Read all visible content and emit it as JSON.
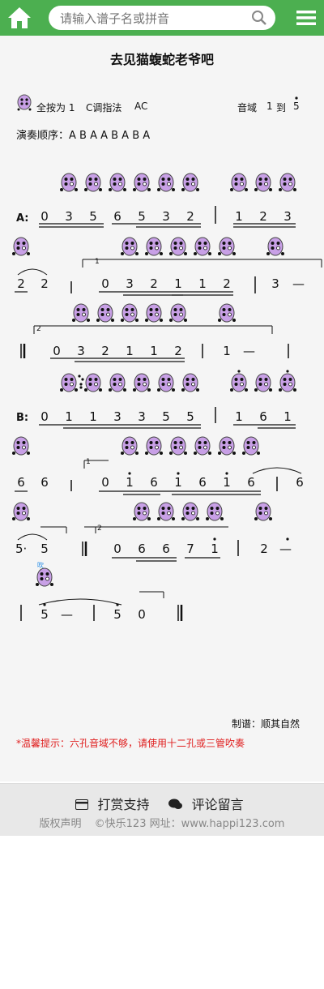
{
  "header": {
    "search_placeholder": "请输入谱子名或拼音",
    "home_icon": "home-icon",
    "search_icon": "search-icon",
    "menu_icon": "menu-icon",
    "accent": "#4caf50"
  },
  "score": {
    "title": "去见猫蝮蛇老爷吧",
    "fingering_label": "全按为 1",
    "key_label": "C调指法",
    "ac_label": "AC",
    "range_label": "音域",
    "range_from": "1",
    "range_to_word": "到",
    "range_to": "5",
    "order_label": "演奏顺序：A B A A B A B A",
    "section_a": "A:",
    "section_b": "B:",
    "volta_1": "1",
    "volta_2": "2",
    "grace_label": "吹",
    "credit": "制谱：顺其自然",
    "hint": "*温馨提示：六孔音域不够，请使用十二孔或三管吹奏",
    "ocarina_color": "#c8a0e6"
  },
  "notes": {
    "r1": [
      "0",
      "3",
      "5",
      "6",
      "5",
      "3",
      "2",
      "1",
      "2",
      "3"
    ],
    "r2": [
      "2",
      "2",
      "0",
      "3",
      "2",
      "1",
      "1",
      "2",
      "3",
      "—"
    ],
    "r3": [
      "0",
      "3",
      "2",
      "1",
      "1",
      "2",
      "1",
      "—"
    ],
    "r4": [
      "0",
      "1",
      "1",
      "3",
      "3",
      "5",
      "5",
      "1",
      "6",
      "1"
    ],
    "r5": [
      "6",
      "6",
      "0",
      "1",
      "6",
      "1",
      "6",
      "1",
      "6",
      "6"
    ],
    "r6": [
      "5·",
      "5",
      "0",
      "6",
      "6",
      "7",
      "1",
      "2",
      "—"
    ],
    "r7": [
      "5",
      "—",
      "5",
      "0"
    ]
  },
  "footer": {
    "reward_label": "打赏支持",
    "comment_label": "评论留言",
    "copyright_label": "版权声明",
    "site_label": "©快乐123 网址：www.happi123.com"
  }
}
